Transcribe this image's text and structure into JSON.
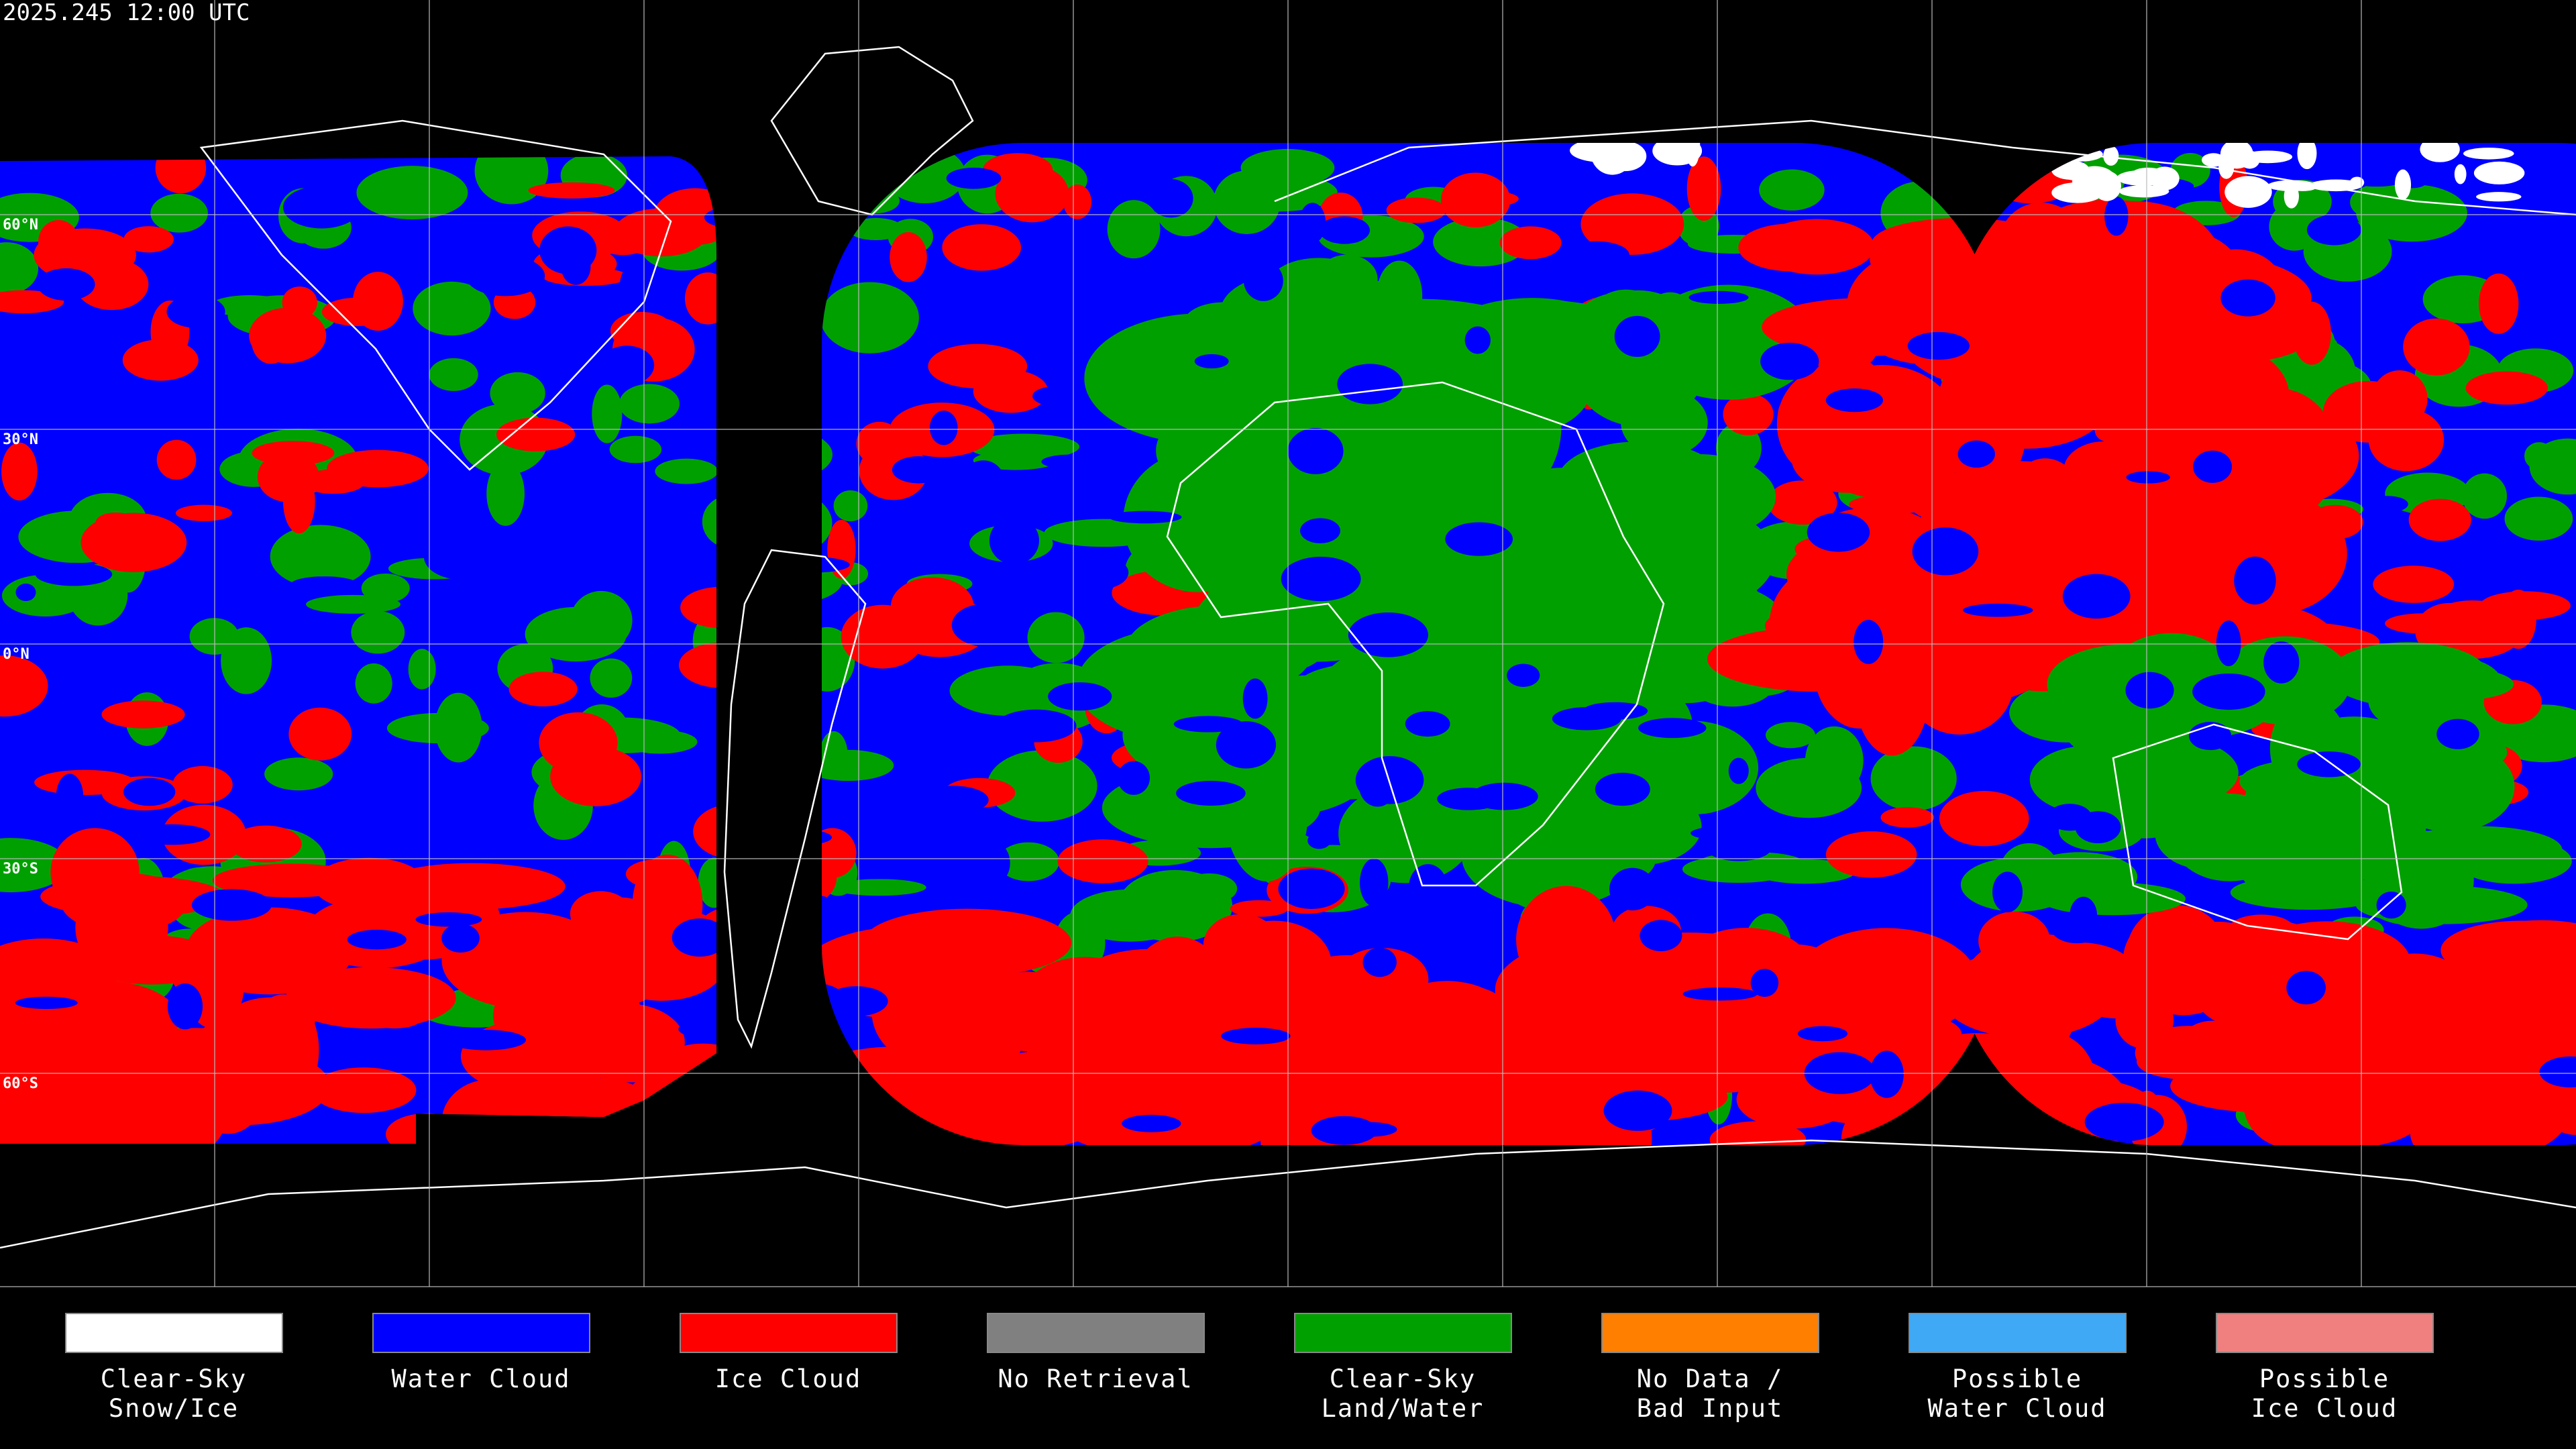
{
  "header": {
    "timestamp": "2025.245 12:00 UTC"
  },
  "map": {
    "latitude_labels": [
      "60°N",
      "30°N",
      "0°N",
      "30°S",
      "60°S"
    ]
  },
  "legend": {
    "items": [
      {
        "lines": [
          "Clear-Sky",
          "Snow/Ice"
        ],
        "color": "#ffffff"
      },
      {
        "lines": [
          "Water Cloud"
        ],
        "color": "#0000ff"
      },
      {
        "lines": [
          "Ice Cloud"
        ],
        "color": "#ff0000"
      },
      {
        "lines": [
          "No Retrieval"
        ],
        "color": "#808080"
      },
      {
        "lines": [
          "Clear-Sky",
          "Land/Water"
        ],
        "color": "#00a000"
      },
      {
        "lines": [
          "No Data /",
          "Bad Input"
        ],
        "color": "#ff8000"
      },
      {
        "lines": [
          "Possible",
          "Water Cloud"
        ],
        "color": "#3fa9f5"
      },
      {
        "lines": [
          "Possible",
          "Ice Cloud"
        ],
        "color": "#f08080"
      }
    ]
  }
}
